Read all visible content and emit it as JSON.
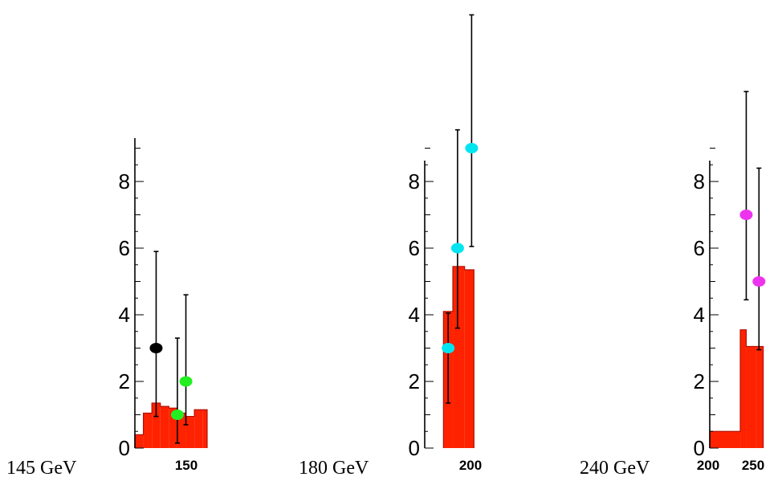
{
  "chart_data": [
    {
      "type": "histogram",
      "caption": "145 GeV",
      "x_tick_labels": [
        "150"
      ],
      "y_tick_labels": [
        "0",
        "2",
        "4",
        "6",
        "8"
      ],
      "ylim": [
        0,
        9
      ],
      "xlim": [
        141,
        158
      ],
      "hist_color": "#ff2200",
      "bins": {
        "edges": [
          141,
          143,
          145,
          147,
          149,
          151,
          153,
          155,
          157,
          158
        ],
        "values": [
          0.4,
          1.05,
          1.35,
          1.25,
          1.2,
          1.05,
          0.95,
          1.15,
          1.15
        ]
      },
      "points": [
        {
          "x": 146,
          "y": 3,
          "lo": 0.95,
          "hi": 5.9,
          "color": "#000000"
        },
        {
          "x": 151,
          "y": 1,
          "lo": 0.15,
          "hi": 3.3,
          "color": "#22ee22"
        },
        {
          "x": 153,
          "y": 2,
          "lo": 0.7,
          "hi": 4.6,
          "color": "#22ee22"
        }
      ]
    },
    {
      "type": "histogram",
      "caption": "180 GeV",
      "x_tick_labels": [
        "200"
      ],
      "y_tick_labels": [
        "0",
        "2",
        "4",
        "6",
        "8"
      ],
      "ylim": [
        0,
        9
      ],
      "xlim": [
        180,
        205
      ],
      "hist_color": "#ff2200",
      "bins": {
        "edges": [
          188,
          192,
          197,
          201
        ],
        "values": [
          4.1,
          5.45,
          5.35
        ]
      },
      "points": [
        {
          "x": 190,
          "y": 3,
          "lo": 1.35,
          "hi": 4.05,
          "color": "#00e5f0"
        },
        {
          "x": 194,
          "y": 6,
          "lo": 3.6,
          "hi": 9.55,
          "color": "#00e5f0"
        },
        {
          "x": 200,
          "y": 9,
          "lo": 6.05,
          "hi": 13.0,
          "color": "#00e5f0"
        }
      ]
    },
    {
      "type": "histogram",
      "caption": "240 GeV",
      "x_tick_labels": [
        "200",
        "250"
      ],
      "y_tick_labels": [
        "0",
        "2",
        "4",
        "6",
        "8"
      ],
      "ylim": [
        0,
        9
      ],
      "xlim": [
        190,
        260
      ],
      "hist_color": "#ff2200",
      "bins": {
        "edges": [
          190,
          226,
          233,
          244,
          253
        ],
        "values": [
          0.5,
          3.55,
          3.05,
          3.05
        ]
      },
      "points": [
        {
          "x": 233,
          "y": 7,
          "lo": 4.45,
          "hi": 10.7,
          "color": "#ee33ee"
        },
        {
          "x": 248,
          "y": 5,
          "lo": 2.95,
          "hi": 8.4,
          "color": "#ee33ee"
        }
      ]
    }
  ]
}
